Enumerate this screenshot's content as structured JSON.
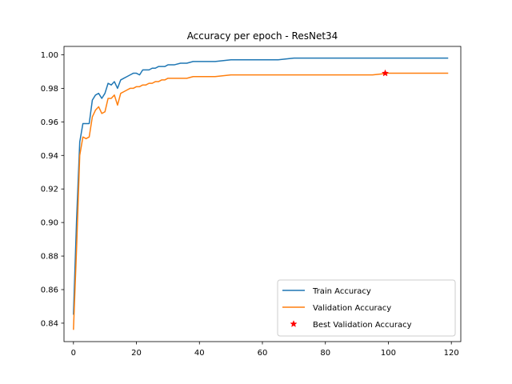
{
  "chart_data": {
    "type": "line",
    "title": "Accuracy per epoch - ResNet34",
    "xlabel": "",
    "ylabel": "",
    "xlim": [
      -3,
      123
    ],
    "ylim": [
      0.829,
      1.005
    ],
    "xticks": [
      0,
      20,
      40,
      60,
      80,
      100,
      120
    ],
    "yticks": [
      0.84,
      0.86,
      0.88,
      0.9,
      0.92,
      0.94,
      0.96,
      0.98,
      1.0
    ],
    "ytick_labels": [
      "0.84",
      "0.86",
      "0.88",
      "0.90",
      "0.92",
      "0.94",
      "0.96",
      "0.98",
      "1.00"
    ],
    "grid": false,
    "legend_position": "lower-right",
    "series": [
      {
        "name": "Train Accuracy",
        "color": "#1f77b4",
        "x": [
          0,
          1,
          2,
          3,
          4,
          5,
          6,
          7,
          8,
          9,
          10,
          11,
          12,
          13,
          14,
          15,
          16,
          17,
          18,
          19,
          20,
          21,
          22,
          23,
          24,
          25,
          26,
          27,
          28,
          29,
          30,
          32,
          34,
          36,
          38,
          40,
          45,
          50,
          55,
          60,
          65,
          70,
          75,
          80,
          85,
          90,
          95,
          100,
          105,
          110,
          115,
          119
        ],
        "values": [
          0.845,
          0.902,
          0.948,
          0.959,
          0.959,
          0.959,
          0.973,
          0.976,
          0.977,
          0.974,
          0.977,
          0.983,
          0.982,
          0.984,
          0.98,
          0.985,
          0.986,
          0.987,
          0.988,
          0.989,
          0.989,
          0.988,
          0.991,
          0.991,
          0.991,
          0.992,
          0.992,
          0.993,
          0.993,
          0.993,
          0.994,
          0.994,
          0.995,
          0.995,
          0.996,
          0.996,
          0.996,
          0.997,
          0.997,
          0.997,
          0.997,
          0.998,
          0.998,
          0.998,
          0.998,
          0.998,
          0.998,
          0.998,
          0.998,
          0.998,
          0.998,
          0.998
        ]
      },
      {
        "name": "Validation Accuracy",
        "color": "#ff7f0e",
        "x": [
          0,
          1,
          2,
          3,
          4,
          5,
          6,
          7,
          8,
          9,
          10,
          11,
          12,
          13,
          14,
          15,
          16,
          17,
          18,
          19,
          20,
          21,
          22,
          23,
          24,
          25,
          26,
          27,
          28,
          29,
          30,
          32,
          34,
          36,
          38,
          40,
          45,
          50,
          55,
          60,
          65,
          70,
          75,
          80,
          85,
          90,
          95,
          100,
          105,
          110,
          115,
          119
        ],
        "values": [
          0.836,
          0.885,
          0.94,
          0.951,
          0.95,
          0.951,
          0.963,
          0.967,
          0.969,
          0.965,
          0.966,
          0.974,
          0.974,
          0.976,
          0.97,
          0.977,
          0.978,
          0.979,
          0.98,
          0.98,
          0.981,
          0.981,
          0.982,
          0.982,
          0.983,
          0.983,
          0.984,
          0.984,
          0.985,
          0.985,
          0.986,
          0.986,
          0.986,
          0.986,
          0.987,
          0.987,
          0.987,
          0.988,
          0.988,
          0.988,
          0.988,
          0.988,
          0.988,
          0.988,
          0.988,
          0.988,
          0.988,
          0.989,
          0.989,
          0.989,
          0.989,
          0.989
        ]
      },
      {
        "name": "Best Validation Accuracy",
        "color": "#ff0000",
        "marker": "star",
        "x": [
          99
        ],
        "values": [
          0.989
        ]
      }
    ]
  }
}
